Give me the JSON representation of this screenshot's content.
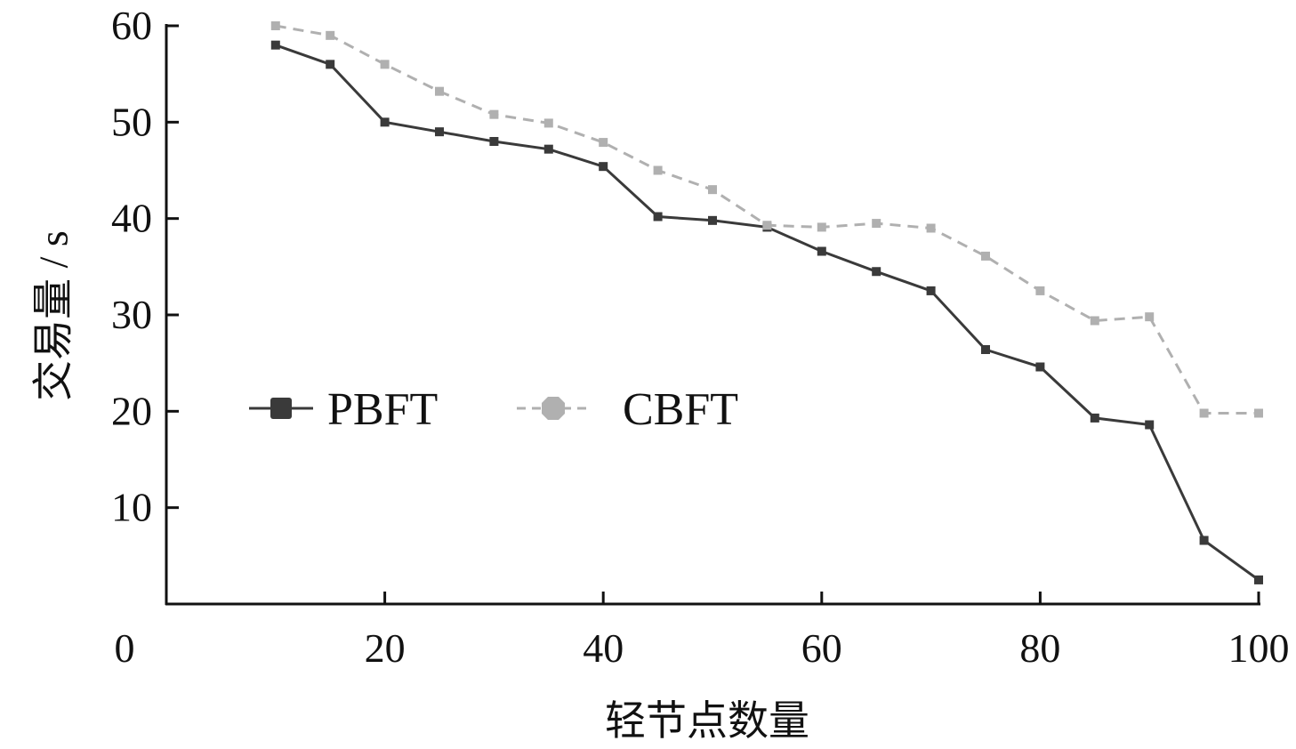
{
  "chart_data": {
    "type": "line",
    "title": "",
    "xlabel": "轻节点数量",
    "ylabel": "交易量 / s",
    "xlim": [
      0,
      100
    ],
    "ylim": [
      0,
      60
    ],
    "origin_label": "0",
    "xticks": [
      20,
      40,
      60,
      80,
      100
    ],
    "yticks": [
      10,
      20,
      30,
      40,
      50,
      60
    ],
    "grid": false,
    "legend_position": "left-center",
    "x": [
      10,
      15,
      20,
      25,
      30,
      35,
      40,
      45,
      50,
      55,
      60,
      65,
      70,
      75,
      80,
      85,
      90,
      95,
      100
    ],
    "series": [
      {
        "name": "PBFT",
        "color": "#3a3a3a",
        "style": "solid",
        "values": [
          58,
          56,
          50,
          49,
          48,
          47.2,
          45.4,
          40.2,
          39.8,
          39.1,
          36.6,
          34.5,
          32.5,
          26.4,
          24.6,
          19.3,
          18.6,
          6.6,
          2.5
        ]
      },
      {
        "name": "CBFT",
        "color": "#b0b0b0",
        "style": "dashed",
        "values": [
          60,
          59,
          56,
          53.2,
          50.8,
          49.9,
          47.9,
          45,
          43,
          39.3,
          39.1,
          39.5,
          39,
          36.1,
          32.5,
          29.4,
          29.8,
          19.8,
          19.8
        ]
      }
    ]
  }
}
